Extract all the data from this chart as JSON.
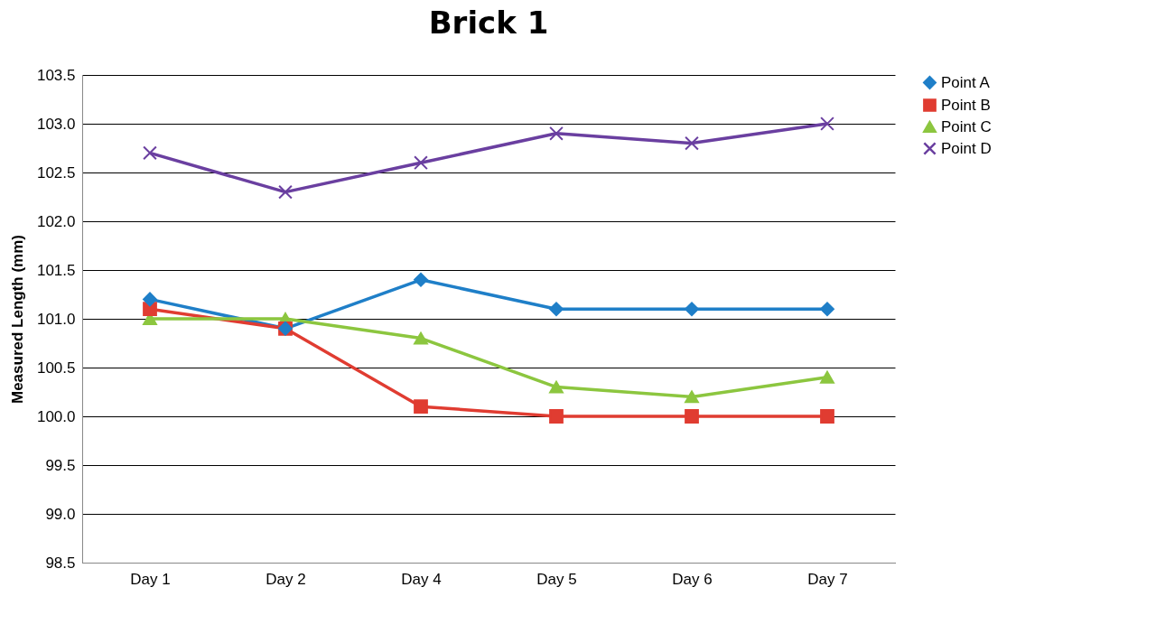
{
  "chart_data": {
    "type": "line",
    "title": "Brick 1",
    "ylabel": "Measured Length (mm)",
    "categories": [
      "Day 1",
      "Day 2",
      "Day 4",
      "Day 5",
      "Day 6",
      "Day 7"
    ],
    "series": [
      {
        "name": "Point A",
        "color": "#1f7fc8",
        "marker": "diamond",
        "values": [
          101.2,
          100.9,
          101.4,
          101.1,
          101.1,
          101.1
        ]
      },
      {
        "name": "Point B",
        "color": "#e03c31",
        "marker": "square",
        "values": [
          101.1,
          100.9,
          100.1,
          100.0,
          100.0,
          100.0
        ]
      },
      {
        "name": "Point C",
        "color": "#8cc63f",
        "marker": "triangle",
        "values": [
          101.0,
          101.0,
          100.8,
          100.3,
          100.2,
          100.4
        ]
      },
      {
        "name": "Point D",
        "color": "#6a3fa0",
        "marker": "cross",
        "values": [
          102.7,
          102.3,
          102.6,
          102.9,
          102.8,
          103.0
        ]
      }
    ],
    "ylim": [
      98.5,
      103.5
    ],
    "yticks": [
      {
        "value": 98.5,
        "label": "98.5"
      },
      {
        "value": 99,
        "label": "99.0"
      },
      {
        "value": 99.5,
        "label": "99.5"
      },
      {
        "value": 100,
        "label": "100.0"
      },
      {
        "value": 100.5,
        "label": "100.5"
      },
      {
        "value": 101,
        "label": "101.0"
      },
      {
        "value": 101.5,
        "label": "101.5"
      },
      {
        "value": 102,
        "label": "102.0"
      },
      {
        "value": 102.5,
        "label": "102.5"
      },
      {
        "value": 103,
        "label": "103.0"
      },
      {
        "value": 103.5,
        "label": "103.5"
      }
    ],
    "grid": "y",
    "legend": "right",
    "line_style": "solid"
  }
}
